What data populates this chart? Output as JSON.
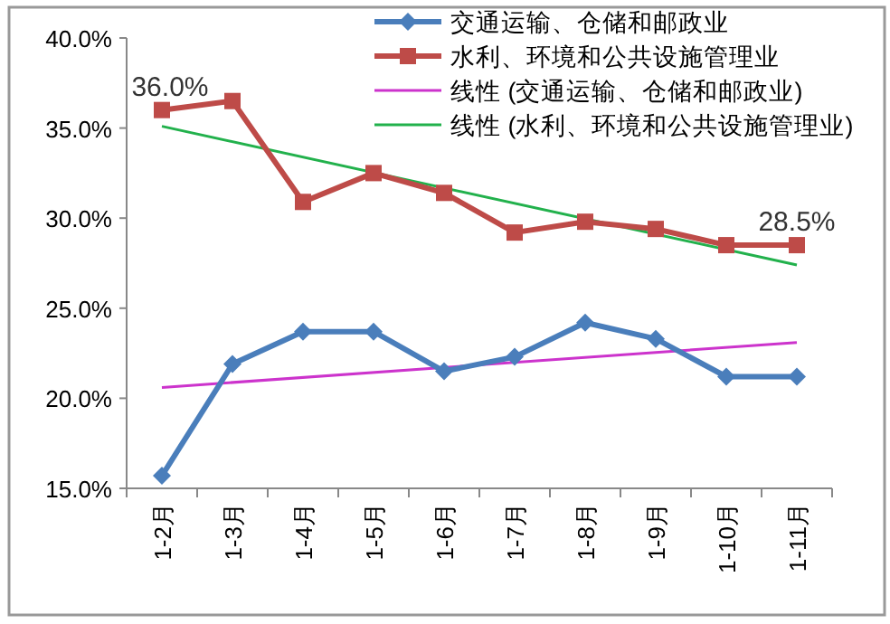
{
  "chart_data": {
    "type": "line",
    "categories": [
      "1-2月",
      "1-3月",
      "1-4月",
      "1-5月",
      "1-6月",
      "1-7月",
      "1-8月",
      "1-9月",
      "1-10月",
      "1-11月"
    ],
    "ylim": [
      15,
      40
    ],
    "yticks": [
      {
        "value": 15,
        "label": "15.0%"
      },
      {
        "value": 20,
        "label": "20.0%"
      },
      {
        "value": 25,
        "label": "25.0%"
      },
      {
        "value": 30,
        "label": "30.0%"
      },
      {
        "value": 35,
        "label": "35.0%"
      },
      {
        "value": 40,
        "label": "40.0%"
      }
    ],
    "grid": false,
    "legend": "top right",
    "line_style": "solid",
    "series": [
      {
        "name": "交通运输、仓储和邮政业",
        "color": "#4a7ebb",
        "marker": "diamond",
        "values": [
          15.7,
          21.9,
          23.7,
          23.7,
          21.5,
          22.3,
          24.2,
          23.3,
          21.2,
          21.2
        ]
      },
      {
        "name": "水利、环境和公共设施管理业",
        "color": "#be4b48",
        "marker": "square",
        "values": [
          36.0,
          36.5,
          30.9,
          32.5,
          31.4,
          29.2,
          29.8,
          29.4,
          28.5,
          28.5
        ],
        "value_labels": [
          "36.0%",
          null,
          null,
          null,
          null,
          null,
          null,
          null,
          null,
          "28.5%"
        ]
      },
      {
        "name": "线性 (交通运输、仓储和邮政业)",
        "color": "#cc33cc",
        "marker": "none",
        "values": [
          20.6,
          null,
          null,
          null,
          null,
          null,
          null,
          null,
          null,
          23.1
        ]
      },
      {
        "name": "线性 (水利、环境和公共设施管理业)",
        "color": "#22b14c",
        "marker": "none",
        "values": [
          35.1,
          null,
          null,
          null,
          null,
          null,
          null,
          null,
          null,
          27.4
        ]
      }
    ]
  }
}
